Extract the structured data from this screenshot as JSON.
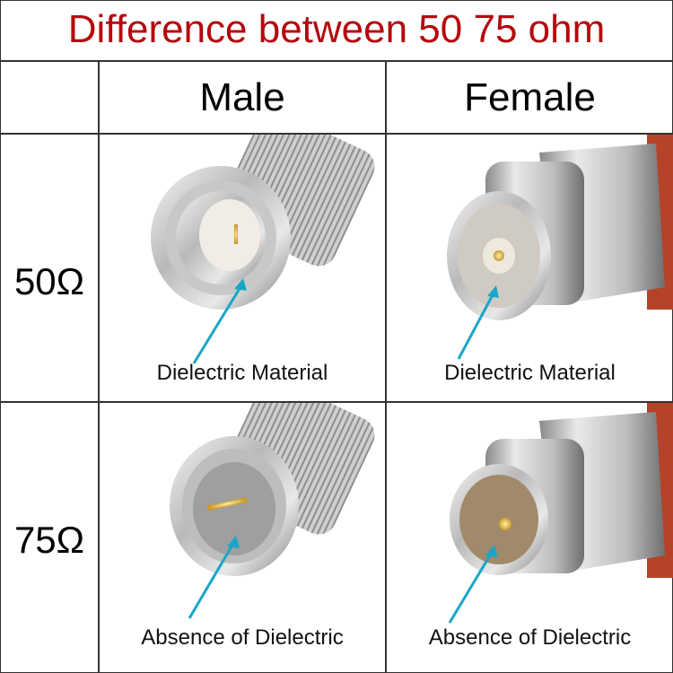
{
  "title": "Difference between 50 75 ohm",
  "columns": [
    "Male",
    "Female"
  ],
  "rows": [
    {
      "label": "50Ω",
      "male_caption": "Dielectric Material",
      "female_caption": "Dielectric Material"
    },
    {
      "label": "75Ω",
      "male_caption": "Absence of Dielectric",
      "female_caption": "Absence of Dielectric"
    }
  ],
  "colors": {
    "title": "#b5080d",
    "arrow": "#1aa6c8",
    "grid": "#333333"
  }
}
